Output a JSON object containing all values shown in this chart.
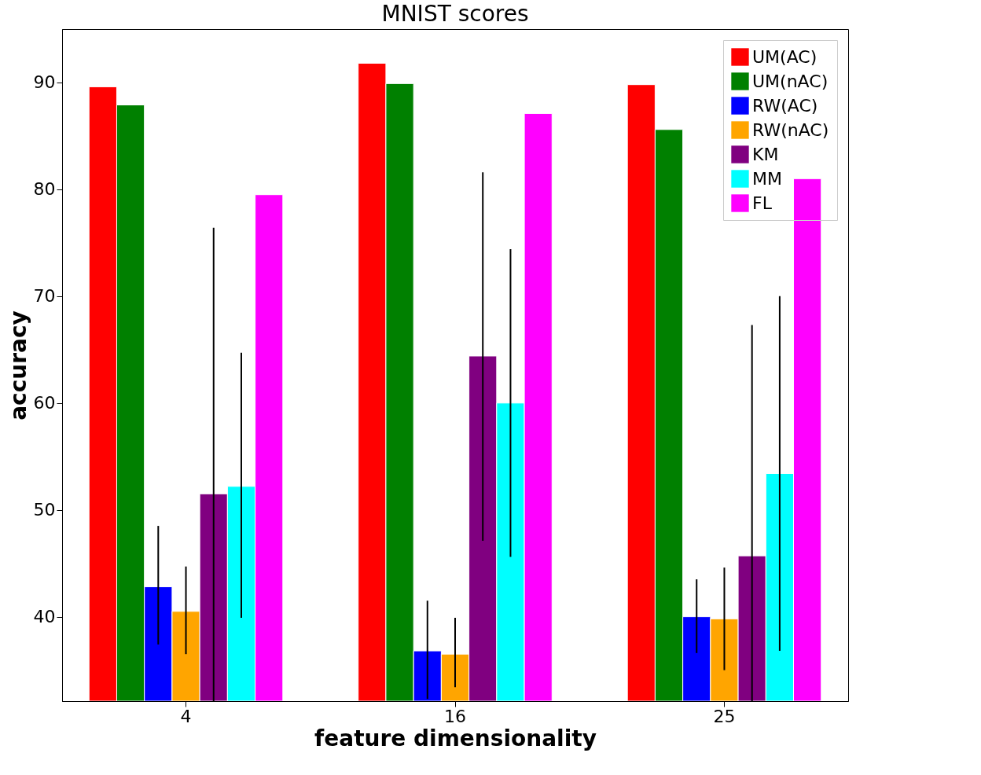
{
  "chart_data": {
    "type": "bar",
    "title": "MNIST scores",
    "xlabel": "feature dimensionality",
    "ylabel": "accuracy",
    "categories": [
      "4",
      "16",
      "25"
    ],
    "series": [
      {
        "name": "UM(AC)",
        "color": "#ff0000",
        "values": [
          89.6,
          91.8,
          89.8
        ]
      },
      {
        "name": "UM(nAC)",
        "color": "#008000",
        "values": [
          87.9,
          89.9,
          85.6
        ]
      },
      {
        "name": "RW(AC)",
        "color": "#0000ff",
        "values": [
          42.8,
          36.8,
          40.0
        ],
        "errors": [
          [
            37.4,
            48.5
          ],
          [
            32.3,
            41.5
          ],
          [
            36.6,
            43.5
          ]
        ]
      },
      {
        "name": "RW(nAC)",
        "color": "#ffa500",
        "values": [
          40.5,
          36.5,
          39.8
        ],
        "errors": [
          [
            36.5,
            44.7
          ],
          [
            33.4,
            39.9
          ],
          [
            35.0,
            44.6
          ]
        ]
      },
      {
        "name": "KM",
        "color": "#800080",
        "values": [
          51.5,
          64.4,
          45.7
        ],
        "errors": [
          [
            32.1,
            76.4
          ],
          [
            47.1,
            81.6
          ],
          [
            32.1,
            67.3
          ]
        ]
      },
      {
        "name": "MM",
        "color": "#00ffff",
        "values": [
          52.2,
          60.0,
          53.4
        ],
        "errors": [
          [
            39.9,
            64.7
          ],
          [
            45.6,
            74.4
          ],
          [
            36.8,
            70.0
          ]
        ]
      },
      {
        "name": "FL",
        "color": "#ff00ff",
        "values": [
          79.5,
          87.1,
          81.0
        ]
      }
    ],
    "ylim": [
      32.1,
      95
    ],
    "yticks": [
      40,
      50,
      60,
      70,
      80,
      90
    ],
    "grid": false,
    "legend": "top right"
  }
}
